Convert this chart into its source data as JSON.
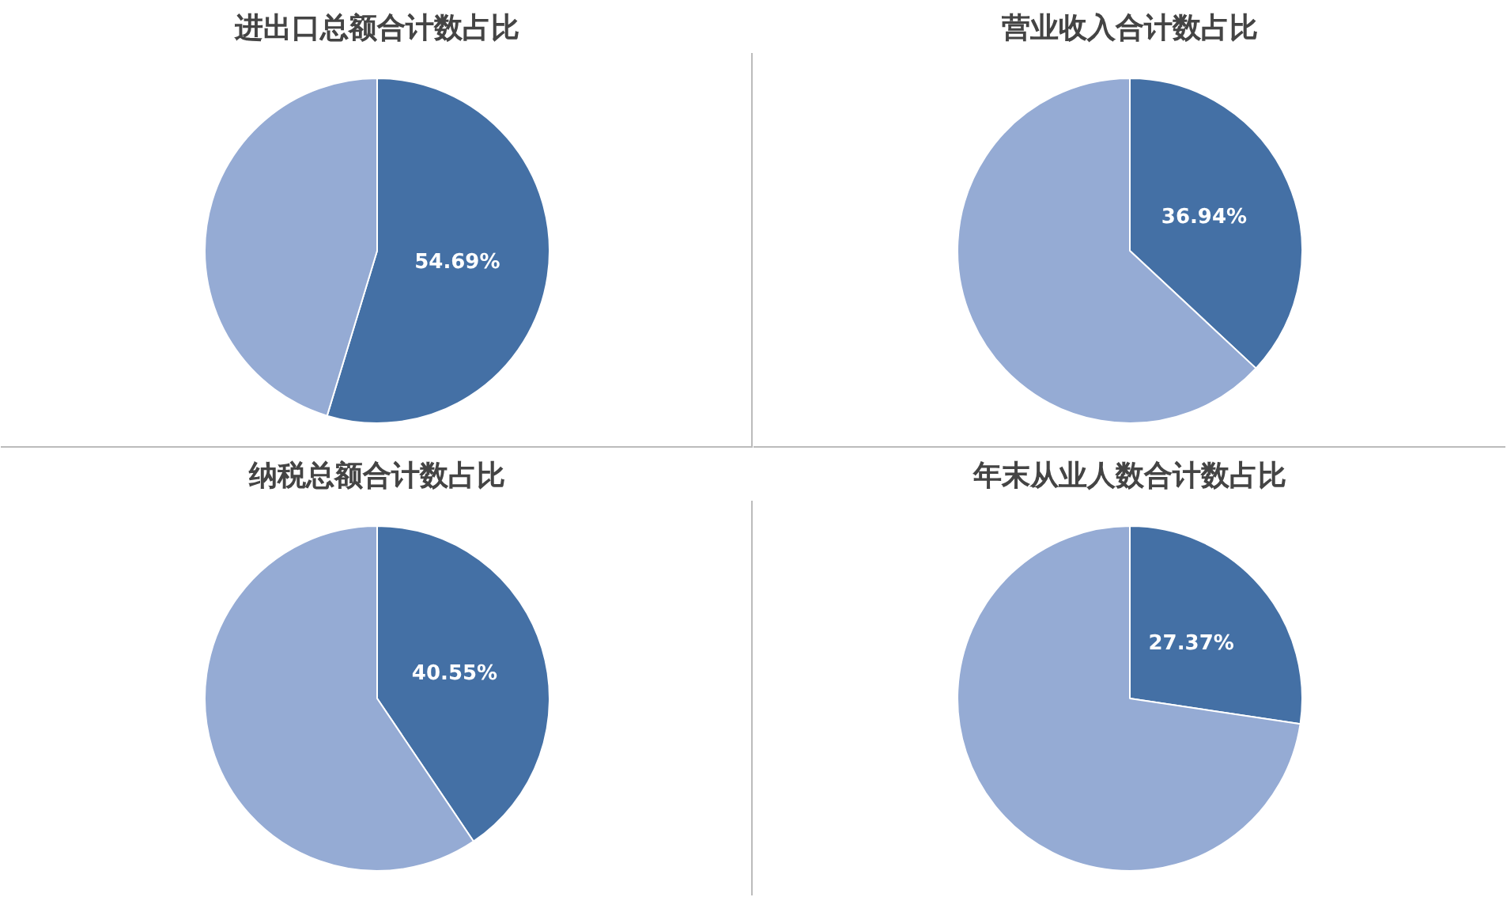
{
  "chart_data": [
    {
      "type": "pie",
      "title": "进出口总额合计数占比",
      "categories": [
        null,
        null
      ],
      "values": [
        54.69,
        45.31
      ],
      "colors": [
        "#4470a5",
        "#95abd4"
      ],
      "value_labels": [
        "54.69%",
        null
      ]
    },
    {
      "type": "pie",
      "title": "营业收入合计数占比",
      "categories": [
        null,
        null
      ],
      "values": [
        36.94,
        63.06
      ],
      "colors": [
        "#4470a5",
        "#95abd4"
      ],
      "value_labels": [
        "36.94%",
        null
      ]
    },
    {
      "type": "pie",
      "title": "纳税总额合计数占比",
      "categories": [
        null,
        null
      ],
      "values": [
        40.55,
        59.45
      ],
      "colors": [
        "#4470a5",
        "#95abd4"
      ],
      "value_labels": [
        "40.55%",
        null
      ]
    },
    {
      "type": "pie",
      "title": "年末从业人数合计数占比",
      "categories": [
        null,
        null
      ],
      "values": [
        27.37,
        72.63
      ],
      "colors": [
        "#4470a5",
        "#95abd4"
      ],
      "value_labels": [
        "27.37%",
        null
      ]
    }
  ]
}
